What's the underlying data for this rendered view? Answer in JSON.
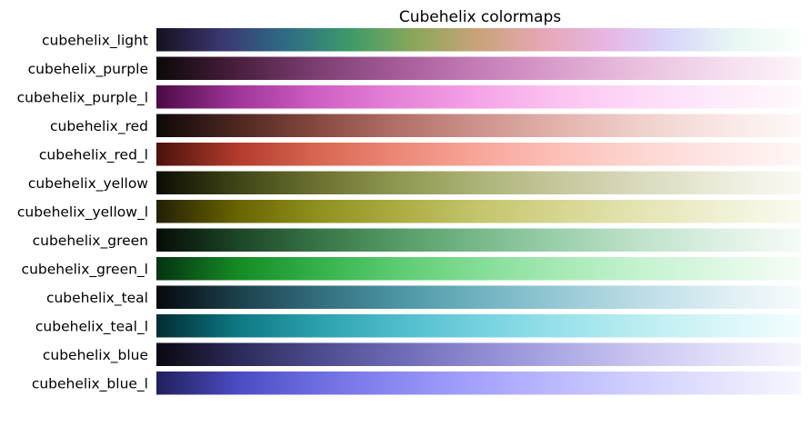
{
  "chart_data": {
    "type": "heatmap",
    "title": "Cubehelix colormaps",
    "xlabel": "",
    "ylabel": "",
    "axes_visible": false,
    "grid": false,
    "value_range": [
      0,
      1
    ],
    "colormaps": [
      {
        "label": "cubehelix_light",
        "stops": [
          "#17101f",
          "#3a3670",
          "#2e6b86",
          "#3d9a6a",
          "#8aa75a",
          "#c9a37a",
          "#e7a7b6",
          "#e6b6e4",
          "#d8d8fb",
          "#e8f7f2",
          "#fbfffb"
        ]
      },
      {
        "label": "cubehelix_purple",
        "stops": [
          "#0b0808",
          "#4a1f3f",
          "#7c3f72",
          "#a55c99",
          "#c47db7",
          "#da9fcd",
          "#e9c0de",
          "#f4dced",
          "#fdf4fa"
        ]
      },
      {
        "label": "cubehelix_purple_l",
        "stops": [
          "#4c0a45",
          "#a0359a",
          "#cf5fc3",
          "#e683d8",
          "#f4a4e7",
          "#fbc3f1",
          "#fddaf7",
          "#fdebfa",
          "#fff9fd"
        ]
      },
      {
        "label": "cubehelix_red",
        "stops": [
          "#0e0908",
          "#4e2721",
          "#864a3f",
          "#b2706a",
          "#cd938c",
          "#e2b3ad",
          "#f0d0cb",
          "#f8e6e4",
          "#fdf8f7"
        ]
      },
      {
        "label": "cubehelix_red_l",
        "stops": [
          "#4b120c",
          "#b23b2c",
          "#d86651",
          "#ec8877",
          "#f8a69a",
          "#fcc0b8",
          "#fdd5d0",
          "#fde7e5",
          "#fef7f6"
        ]
      },
      {
        "label": "cubehelix_yellow",
        "stops": [
          "#0d0d05",
          "#3f4516",
          "#6c7131",
          "#8f9750",
          "#adb377",
          "#c6c79c",
          "#dadabd",
          "#ebebda",
          "#f9f9f3"
        ]
      },
      {
        "label": "cubehelix_yellow_l",
        "stops": [
          "#232005",
          "#686400",
          "#8e911e",
          "#abac42",
          "#c4c56b",
          "#d5d68f",
          "#e4e4b3",
          "#f0f0d3",
          "#fafaf0"
        ]
      },
      {
        "label": "cubehelix_green",
        "stops": [
          "#040d07",
          "#1d4527",
          "#377446",
          "#559b67",
          "#78b98a",
          "#9bd0ac",
          "#bee2ca",
          "#dcf0e3",
          "#f5fbf6"
        ]
      },
      {
        "label": "cubehelix_green_l",
        "stops": [
          "#053312",
          "#158a24",
          "#33b14a",
          "#5ccc72",
          "#83dd96",
          "#a6e9b4",
          "#c4f2cf",
          "#ddf8e3",
          "#f5fdf6"
        ]
      },
      {
        "label": "cubehelix_teal",
        "stops": [
          "#05090d",
          "#1c3f4b",
          "#336d7c",
          "#4c95a4",
          "#70b2c0",
          "#96c9d5",
          "#bbdce5",
          "#dbedf2",
          "#f6fbfc"
        ]
      },
      {
        "label": "cubehelix_teal_l",
        "stops": [
          "#032c33",
          "#0d7883",
          "#2ba0ad",
          "#4fbccb",
          "#74d1df",
          "#98e1ea",
          "#baedf1",
          "#d8f6f8",
          "#f2fdfd"
        ]
      },
      {
        "label": "cubehelix_blue",
        "stops": [
          "#0a0810",
          "#2c2a58",
          "#4c4b8d",
          "#6d6ab5",
          "#8f8ad1",
          "#ada9e4",
          "#c9c6f0",
          "#e1dff8",
          "#f6f5fd"
        ]
      },
      {
        "label": "cubehelix_blue_l",
        "stops": [
          "#21205c",
          "#4b4bc2",
          "#6e6de0",
          "#8b89f2",
          "#a5a3fd",
          "#bcbafe",
          "#d1d0fe",
          "#e4e3fe",
          "#f6f6ff"
        ]
      }
    ]
  }
}
